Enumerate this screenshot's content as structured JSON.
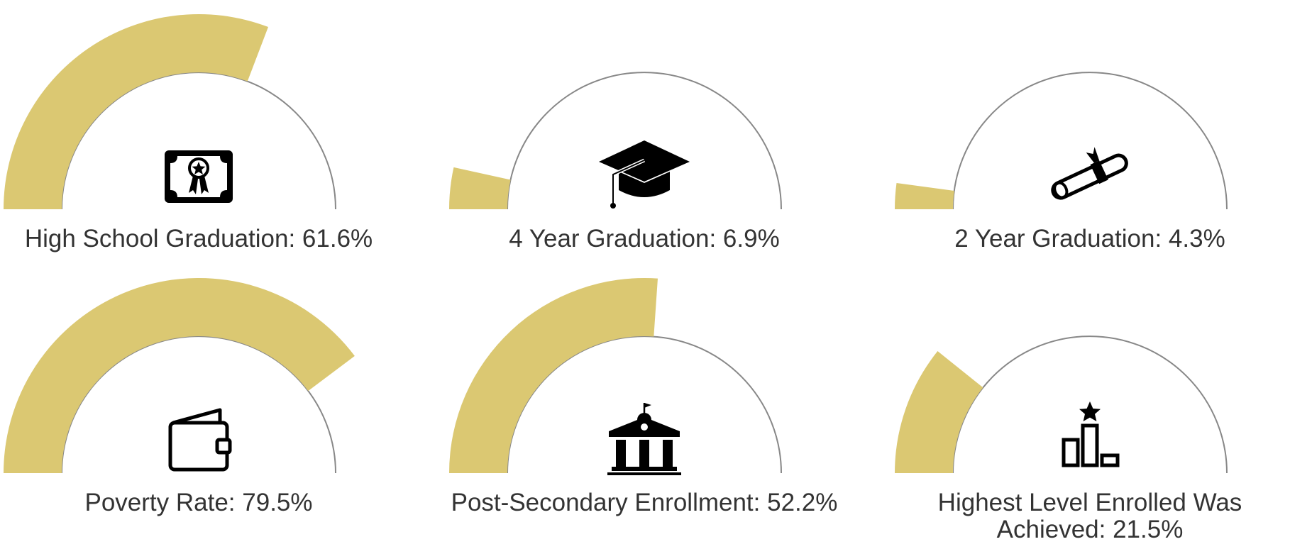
{
  "colors": {
    "fill": "#dbc872",
    "track": "#888888",
    "icon": "#000000",
    "text": "#333333"
  },
  "chart_data": {
    "type": "gauge",
    "max": 100,
    "gauges": [
      {
        "id": "hs",
        "label": "High School Graduation: 61.6%",
        "value": 61.6,
        "icon": "certificate-icon"
      },
      {
        "id": "y4",
        "label": "4 Year Graduation: 6.9%",
        "value": 6.9,
        "icon": "graduation-cap-icon"
      },
      {
        "id": "y2",
        "label": "2 Year Graduation: 4.3%",
        "value": 4.3,
        "icon": "diploma-scroll-icon"
      },
      {
        "id": "pov",
        "label": "Poverty Rate: 79.5%",
        "value": 79.5,
        "icon": "wallet-icon"
      },
      {
        "id": "pse",
        "label": "Post-Secondary Enrollment: 52.2%",
        "value": 52.2,
        "icon": "university-building-icon"
      },
      {
        "id": "high",
        "label": "Highest Level Enrolled Was Achieved: 21.5%",
        "value": 21.5,
        "icon": "podium-star-icon"
      }
    ]
  }
}
